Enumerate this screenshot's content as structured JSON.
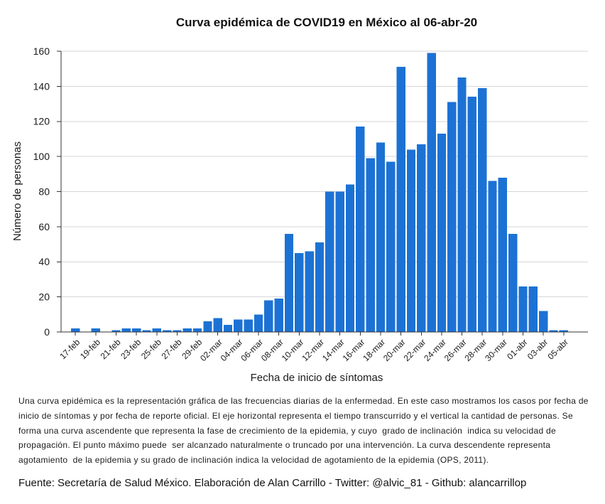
{
  "chart_data": {
    "type": "bar",
    "title": "Curva epidémica de COVID19 en México al 06-abr-20",
    "xlabel": "Fecha de inicio de síntomas",
    "ylabel": "Número de personas",
    "x": [
      "17-feb",
      "18-feb",
      "19-feb",
      "20-feb",
      "21-feb",
      "22-feb",
      "23-feb",
      "24-feb",
      "25-feb",
      "26-feb",
      "27-feb",
      "28-feb",
      "29-feb",
      "01-mar",
      "02-mar",
      "03-mar",
      "04-mar",
      "05-mar",
      "06-mar",
      "07-mar",
      "08-mar",
      "09-mar",
      "10-mar",
      "11-mar",
      "12-mar",
      "13-mar",
      "14-mar",
      "15-mar",
      "16-mar",
      "17-mar",
      "18-mar",
      "19-mar",
      "20-mar",
      "21-mar",
      "22-mar",
      "23-mar",
      "24-mar",
      "25-mar",
      "26-mar",
      "27-mar",
      "28-mar",
      "29-mar",
      "30-mar",
      "31-mar",
      "01-abr",
      "02-abr",
      "03-abr",
      "04-abr",
      "05-abr"
    ],
    "values": [
      2,
      0,
      2,
      0,
      1,
      2,
      2,
      1,
      2,
      1,
      1,
      2,
      2,
      6,
      8,
      4,
      7,
      7,
      10,
      18,
      19,
      56,
      45,
      46,
      51,
      80,
      80,
      84,
      117,
      99,
      108,
      97,
      151,
      104,
      107,
      159,
      113,
      131,
      145,
      134,
      139,
      86,
      88,
      56,
      26,
      26,
      12,
      1,
      1
    ],
    "ylim": [
      0,
      160
    ],
    "yticks": [
      0,
      20,
      40,
      60,
      80,
      100,
      120,
      140,
      160
    ],
    "grid": true,
    "bar_color": "#1c72d4"
  },
  "note": {
    "lines": [
      "Una curva epidémica es la representación gráfica de las frecuencias diarias de la enfermedad. En este caso mostramos los casos por fecha de",
      "inicio de síntomas y por fecha de reporte oficial. El eje horizontal representa el tiempo transcurrido y el vertical la cantidad de personas. Se",
      "forma una curva ascendente que representa la fase de crecimiento de la epidemia, y cuyo  grado de inclinación  indica su velocidad de",
      "propagación. El punto máximo puede  ser alcanzado naturalmente o truncado por una intervención. La curva descendente representa",
      "agotamiento  de la epidemia y su grado de inclinación indica la velocidad de agotamiento de la epidemia (OPS, 2011)."
    ]
  },
  "source": "Fuente: Secretaría de Salud México. Elaboración de Alan Carrillo - Twitter: @alvic_81 - Github: alancarrillop"
}
